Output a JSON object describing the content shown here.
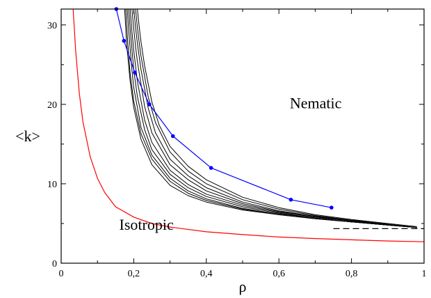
{
  "chart_data": {
    "type": "line",
    "xlabel": "ρ",
    "ylabel": "<k>",
    "xlim": [
      0,
      1
    ],
    "ylim": [
      0,
      32
    ],
    "x_ticks": [
      0,
      0.2,
      0.4,
      0.6,
      0.8,
      1
    ],
    "x_tick_labels": [
      "0",
      "0,2",
      "0,4",
      "0,6",
      "0,8",
      "1"
    ],
    "y_ticks": [
      0,
      10,
      20,
      30
    ],
    "y_tick_labels": [
      "0",
      "10",
      "20",
      "30"
    ],
    "grid": false,
    "legend": "none",
    "annotations": [
      {
        "text": "Nematic",
        "x": 0.63,
        "y": 19.5
      },
      {
        "text": "Isotropic",
        "x": 0.16,
        "y": 4.2
      }
    ],
    "series": [
      {
        "kind": "curve",
        "color": "#ff0000",
        "width": 1.2,
        "x": [
          0.033,
          0.04,
          0.05,
          0.06,
          0.08,
          0.1,
          0.12,
          0.15,
          0.2,
          0.25,
          0.3,
          0.4,
          0.5,
          0.6,
          0.7,
          0.8,
          0.9,
          1.0
        ],
        "y": [
          32,
          26.7,
          21.4,
          17.8,
          13.4,
          10.7,
          8.9,
          7.1,
          5.8,
          5.0,
          4.55,
          3.95,
          3.6,
          3.3,
          3.1,
          2.95,
          2.8,
          2.7
        ]
      },
      {
        "kind": "curve",
        "color": "#000000",
        "width": 1.0,
        "x": [
          0.175,
          0.18,
          0.19,
          0.2,
          0.22,
          0.25,
          0.3,
          0.35,
          0.4,
          0.5,
          0.6,
          0.7,
          0.8,
          0.9,
          0.98
        ],
        "y": [
          32,
          27.8,
          22.9,
          19.6,
          15.6,
          12.4,
          9.8,
          8.5,
          7.7,
          6.7,
          6.1,
          5.6,
          5.2,
          4.8,
          4.5
        ]
      },
      {
        "kind": "curve",
        "color": "#000000",
        "width": 1.0,
        "x": [
          0.178,
          0.183,
          0.19,
          0.2,
          0.22,
          0.25,
          0.3,
          0.35,
          0.4,
          0.5,
          0.6,
          0.7,
          0.8,
          0.9,
          0.98
        ],
        "y": [
          32,
          28.2,
          23.9,
          20.4,
          16.3,
          13.1,
          10.3,
          8.8,
          7.9,
          6.8,
          6.1,
          5.6,
          5.2,
          4.8,
          4.5
        ]
      },
      {
        "kind": "curve",
        "color": "#000000",
        "width": 1.0,
        "x": [
          0.182,
          0.187,
          0.195,
          0.2,
          0.22,
          0.25,
          0.3,
          0.35,
          0.4,
          0.5,
          0.6,
          0.7,
          0.8,
          0.9,
          0.98
        ],
        "y": [
          32,
          28.8,
          24.3,
          22.1,
          17.1,
          13.6,
          10.7,
          9.1,
          8.1,
          6.9,
          6.2,
          5.7,
          5.2,
          4.8,
          4.5
        ]
      },
      {
        "kind": "curve",
        "color": "#000000",
        "width": 1.0,
        "x": [
          0.186,
          0.19,
          0.2,
          0.21,
          0.23,
          0.25,
          0.3,
          0.35,
          0.4,
          0.5,
          0.6,
          0.7,
          0.8,
          0.9,
          0.98
        ],
        "y": [
          32,
          29.6,
          24.3,
          21.0,
          16.8,
          14.3,
          11.2,
          9.5,
          8.4,
          7.1,
          6.3,
          5.7,
          5.2,
          4.8,
          4.5
        ]
      },
      {
        "kind": "curve",
        "color": "#000000",
        "width": 1.0,
        "x": [
          0.19,
          0.195,
          0.2,
          0.21,
          0.23,
          0.25,
          0.3,
          0.35,
          0.4,
          0.5,
          0.6,
          0.7,
          0.8,
          0.9,
          0.98
        ],
        "y": [
          32,
          29.2,
          26.8,
          22.9,
          18.0,
          15.2,
          11.7,
          9.9,
          8.7,
          7.3,
          6.4,
          5.8,
          5.3,
          4.8,
          4.5
        ]
      },
      {
        "kind": "curve",
        "color": "#000000",
        "width": 1.0,
        "x": [
          0.195,
          0.2,
          0.205,
          0.21,
          0.23,
          0.25,
          0.3,
          0.35,
          0.4,
          0.5,
          0.6,
          0.7,
          0.8,
          0.9,
          0.98
        ],
        "y": [
          32,
          29.5,
          27.3,
          25.4,
          19.7,
          16.4,
          12.4,
          10.5,
          9.1,
          7.5,
          6.5,
          5.9,
          5.3,
          4.9,
          4.5
        ]
      },
      {
        "kind": "curve",
        "color": "#000000",
        "width": 1.0,
        "x": [
          0.2,
          0.205,
          0.21,
          0.22,
          0.24,
          0.26,
          0.3,
          0.35,
          0.4,
          0.5,
          0.6,
          0.7,
          0.8,
          0.9,
          0.98
        ],
        "y": [
          32,
          29.7,
          27.7,
          24.4,
          19.5,
          16.4,
          13.1,
          11.0,
          9.5,
          7.7,
          6.6,
          5.9,
          5.4,
          4.9,
          4.5
        ]
      },
      {
        "kind": "curve",
        "color": "#000000",
        "width": 1.0,
        "x": [
          0.205,
          0.21,
          0.215,
          0.22,
          0.24,
          0.26,
          0.3,
          0.35,
          0.4,
          0.5,
          0.6,
          0.7,
          0.8,
          0.9,
          0.98
        ],
        "y": [
          32,
          29.7,
          27.8,
          26.1,
          20.9,
          17.7,
          14.0,
          11.6,
          10.0,
          8.0,
          6.8,
          6.0,
          5.4,
          4.9,
          4.5
        ]
      },
      {
        "kind": "curve",
        "color": "#000000",
        "width": 1.0,
        "x": [
          0.21,
          0.215,
          0.22,
          0.23,
          0.25,
          0.27,
          0.3,
          0.35,
          0.4,
          0.5,
          0.6,
          0.7,
          0.8,
          0.9,
          0.98
        ],
        "y": [
          32,
          29.8,
          27.9,
          24.8,
          20.3,
          17.4,
          14.7,
          12.2,
          10.5,
          8.3,
          7.0,
          6.1,
          5.5,
          5.0,
          4.6
        ]
      },
      {
        "kind": "markers-line",
        "color": "#0000ff",
        "width": 1.2,
        "x": [
          0.152,
          0.173,
          0.203,
          0.243,
          0.308,
          0.413,
          0.633,
          0.745
        ],
        "y": [
          32,
          28,
          24,
          20,
          16,
          12,
          8,
          7
        ]
      },
      {
        "kind": "dashed",
        "color": "#000000",
        "width": 1.2,
        "x": [
          0.75,
          1.0
        ],
        "y": [
          4.35,
          4.35
        ]
      }
    ]
  }
}
